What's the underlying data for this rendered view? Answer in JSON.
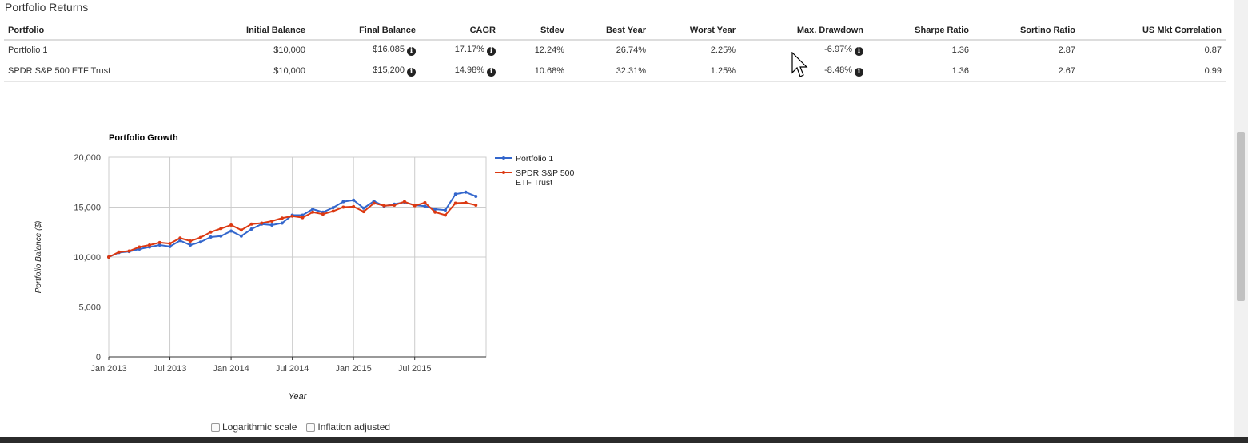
{
  "section_title": "Portfolio Returns",
  "table": {
    "headers": [
      "Portfolio",
      "Initial Balance",
      "Final Balance",
      "CAGR",
      "Stdev",
      "Best Year",
      "Worst Year",
      "Max. Drawdown",
      "Sharpe Ratio",
      "Sortino Ratio",
      "US Mkt Correlation"
    ],
    "rows": [
      {
        "portfolio": "Portfolio 1",
        "initial_balance": "$10,000",
        "final_balance": "$16,085",
        "cagr": "17.17%",
        "stdev": "12.24%",
        "best_year": "26.74%",
        "worst_year": "2.25%",
        "max_drawdown": "-6.97%",
        "sharpe_ratio": "1.36",
        "sortino_ratio": "2.87",
        "us_mkt_correlation": "0.87"
      },
      {
        "portfolio": "SPDR S&P 500 ETF Trust",
        "initial_balance": "$10,000",
        "final_balance": "$15,200",
        "cagr": "14.98%",
        "stdev": "10.68%",
        "best_year": "32.31%",
        "worst_year": "1.25%",
        "max_drawdown": "-8.48%",
        "sharpe_ratio": "1.36",
        "sortino_ratio": "2.67",
        "us_mkt_correlation": "0.99"
      }
    ],
    "info_icon": "info-circle-icon"
  },
  "chart_data": {
    "type": "line",
    "title": "Portfolio Growth",
    "xlabel": "Year",
    "ylabel": "Portfolio Balance ($)",
    "ylim": [
      0,
      20000
    ],
    "y_ticks": [
      "0",
      "5,000",
      "10,000",
      "15,000",
      "20,000"
    ],
    "x_ticks": [
      "Jan 2013",
      "Jul 2013",
      "Jan 2014",
      "Jul 2014",
      "Jan 2015",
      "Jul 2015"
    ],
    "x_start": "Jan 2013",
    "x_end": "Dec 2015",
    "grid": true,
    "legend_position": "right",
    "series": [
      {
        "name": "Portfolio 1",
        "color": "#3366cc",
        "values": [
          10000,
          10450,
          10550,
          10800,
          11000,
          11200,
          11050,
          11650,
          11200,
          11500,
          12000,
          12100,
          12600,
          12100,
          12800,
          13300,
          13200,
          13400,
          14200,
          14200,
          14800,
          14500,
          14950,
          15550,
          15700,
          14900,
          15600,
          15100,
          15300,
          15500,
          15200,
          15100,
          14800,
          14700,
          16300,
          16500,
          16085
        ]
      },
      {
        "name": "SPDR S&P 500 ETF Trust",
        "color": "#dc3912",
        "values": [
          10000,
          10500,
          10600,
          11000,
          11200,
          11450,
          11350,
          11900,
          11600,
          11950,
          12500,
          12850,
          13200,
          12700,
          13300,
          13400,
          13600,
          13900,
          14100,
          13950,
          14500,
          14300,
          14600,
          15000,
          15050,
          14550,
          15400,
          15150,
          15200,
          15550,
          15150,
          15450,
          14500,
          14200,
          15400,
          15450,
          15200
        ]
      }
    ]
  },
  "options": {
    "log_scale_label": "Logarithmic scale",
    "inflation_label": "Inflation adjusted"
  }
}
